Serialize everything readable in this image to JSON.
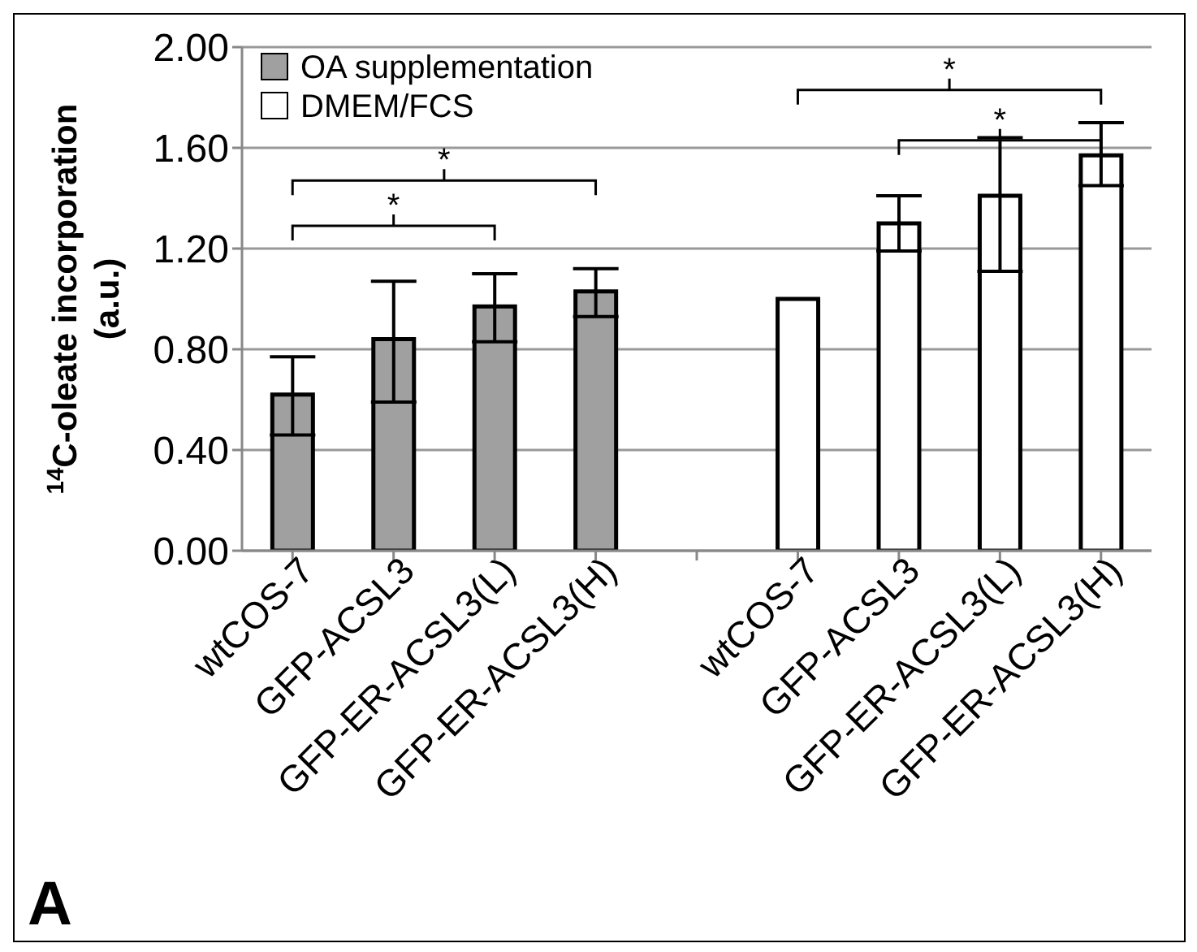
{
  "chart_data": {
    "type": "bar",
    "stacked": true,
    "categories": [
      "wtCOS-7",
      "GFP-ACSL3",
      "GFP-ER-ACSL3(L)",
      "GFP-ER-ACSL3(H)",
      null,
      "wtCOS-7",
      "GFP-ACSL3",
      "GFP-ER-ACSL3(L)",
      "GFP-ER-ACSL3(H)"
    ],
    "series": [
      {
        "name": "OA supplementation",
        "color": "#a0a0a0",
        "values": [
          0.62,
          0.84,
          0.97,
          1.03,
          null,
          null,
          null,
          null,
          null
        ],
        "errors": [
          [
            0.46,
            0.77
          ],
          [
            0.59,
            1.07
          ],
          [
            0.83,
            1.1
          ],
          [
            0.93,
            1.12
          ],
          null,
          null,
          null,
          null,
          null
        ]
      },
      {
        "name": "DMEM/FCS",
        "color": "#ffffff",
        "values": [
          null,
          null,
          null,
          null,
          null,
          1.0,
          1.3,
          1.41,
          1.57
        ],
        "errors": [
          null,
          null,
          null,
          null,
          null,
          null,
          [
            1.19,
            1.41
          ],
          [
            1.11,
            1.64
          ],
          [
            1.45,
            1.7
          ]
        ]
      }
    ],
    "ylabel": "$^{14}$C-oleate incorporation (a.u.)",
    "ylim": [
      0,
      2
    ],
    "yticks": [
      {
        "value": 0,
        "label": "0.00"
      },
      {
        "value": 0.4,
        "label": "0.40"
      },
      {
        "value": 0.8,
        "label": "0.80"
      },
      {
        "value": 1.2,
        "label": "1.20"
      },
      {
        "value": 1.6,
        "label": "1.60"
      },
      {
        "value": 2,
        "label": "2.00"
      }
    ],
    "grid": "y",
    "legend": "top left",
    "annotations": [
      "*",
      "*",
      "*",
      "*",
      "A"
    ]
  }
}
